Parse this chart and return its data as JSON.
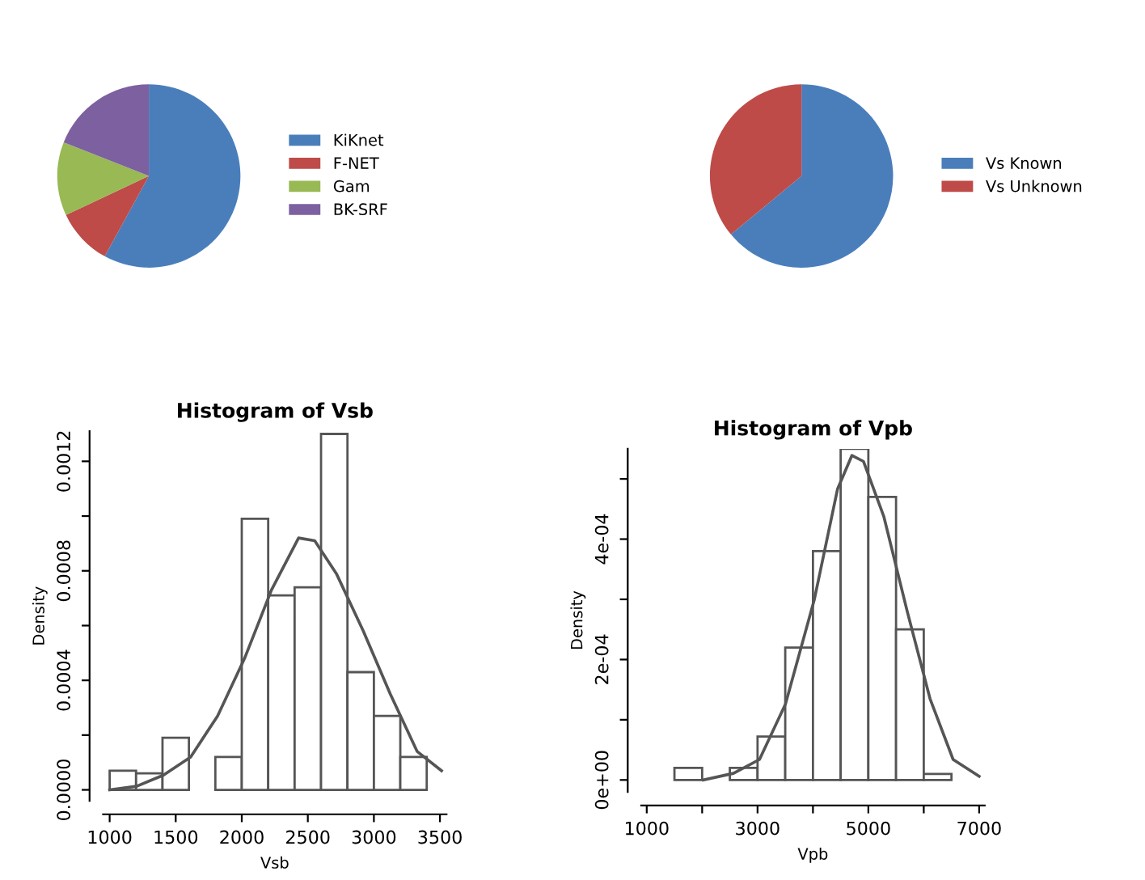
{
  "chart_data": [
    {
      "type": "pie",
      "categories": [
        "KiKnet",
        "F-NET",
        "Gam",
        "BK-SRF"
      ],
      "values": [
        58,
        10,
        13,
        19
      ],
      "colors": [
        "#4a7ebb",
        "#be4b48",
        "#98b954",
        "#7d60a0"
      ],
      "legend": "right"
    },
    {
      "type": "pie",
      "categories": [
        "Vs Known",
        "Vs Unknown"
      ],
      "values": [
        64,
        36
      ],
      "colors": [
        "#4a7ebb",
        "#be4b48"
      ],
      "legend": "right"
    },
    {
      "type": "histogram",
      "title": "Histogram of Vsb",
      "xlabel": "Vsb",
      "ylabel": "Density",
      "color": "#ffffff",
      "bins": [
        1000,
        1200,
        1400,
        1600,
        1800,
        2000,
        2200,
        2400,
        2600,
        2800,
        3000,
        3200,
        3400
      ],
      "values": [
        7e-05,
        6e-05,
        0.00019,
        0,
        0.00012,
        0.00099,
        0.00071,
        0.00074,
        0.0013,
        0.00043,
        0.00027,
        0.00012
      ],
      "series": [
        {
          "type": "line",
          "color": "#555555",
          "x": [
            1000,
            1204,
            1408,
            1613,
            1817,
            2021,
            2225,
            2430,
            2552,
            2716,
            2920,
            3124,
            3328,
            3512
          ],
          "values": [
            0,
            1.3e-05,
            5.4e-05,
            0.00012,
            0.00027,
            0.00048,
            0.00073,
            0.00092,
            0.00091,
            0.00079,
            0.00058,
            0.00035,
            0.00014,
            7e-05
          ]
        }
      ],
      "xlim": [
        950,
        3550
      ],
      "ylim": [
        -4e-05,
        0.00131
      ],
      "xticks": [
        1000,
        1500,
        2000,
        2500,
        3000,
        3500
      ],
      "yticks": [
        {
          "value": 0,
          "label": "0.0000"
        },
        {
          "value": 0.0002,
          "label": null
        },
        {
          "value": 0.0004,
          "label": "0.0004"
        },
        {
          "value": 0.0006,
          "label": null
        },
        {
          "value": 0.0008,
          "label": "0.0008"
        },
        {
          "value": 0.001,
          "label": null
        },
        {
          "value": 0.0012,
          "label": "0.0012"
        }
      ],
      "grid": false
    },
    {
      "type": "histogram",
      "title": "Histogram of Vpb",
      "xlabel": "Vpb",
      "ylabel": "Density",
      "color": "#ffffff",
      "bins": [
        1500,
        2000,
        2500,
        3000,
        3500,
        4000,
        4500,
        5000,
        5500,
        6000,
        6500
      ],
      "values": [
        2e-05,
        0,
        2e-05,
        7.2e-05,
        0.00022,
        0.00038,
        0.00055,
        0.00047,
        0.00025,
        1e-05
      ],
      "series": [
        {
          "type": "line",
          "color": "#555555",
          "x": [
            2023,
            2565,
            3035,
            3504,
            4026,
            4443,
            4704,
            4913,
            5278,
            5696,
            6113,
            6530,
            7000
          ],
          "values": [
            0,
            1.1e-05,
            3.4e-05,
            0.000126,
            0.0003,
            0.000483,
            0.000539,
            0.000529,
            0.000438,
            0.000282,
            0.000135,
            3.4e-05,
            6e-06
          ]
        }
      ],
      "xlim": [
        900,
        7100
      ],
      "ylim": [
        -2e-05,
        0.00055
      ],
      "xticks": [
        1000,
        {
          "value": 2000,
          "label": null
        },
        3000,
        {
          "value": 4000,
          "label": null
        },
        5000,
        {
          "value": 6000,
          "label": null
        },
        7000
      ],
      "yticks": [
        {
          "value": 0,
          "label": "0e+00"
        },
        {
          "value": 0.0001,
          "label": null
        },
        {
          "value": 0.0002,
          "label": "2e-04"
        },
        {
          "value": 0.0003,
          "label": null
        },
        {
          "value": 0.0004,
          "label": "4e-04"
        },
        {
          "value": 0.0005,
          "label": null
        }
      ],
      "grid": false
    }
  ]
}
